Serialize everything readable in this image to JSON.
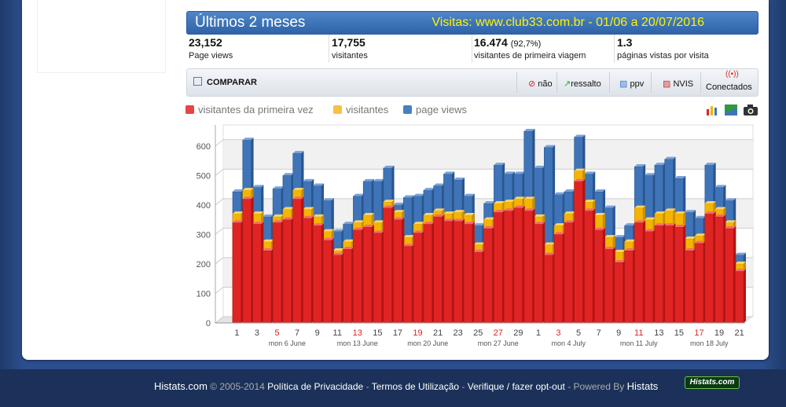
{
  "header": {
    "title": "Últimos 2 meses",
    "visits_text": "Visitas: www.club33.com.br - 01/06 a 20/07/2016"
  },
  "stats": [
    {
      "value": "23,152",
      "extra": "",
      "label": "Page views"
    },
    {
      "value": "17,755",
      "extra": "",
      "label": "visitantes"
    },
    {
      "value": "16.474",
      "extra": "(92,7%)",
      "label": "visitantes de primeira viagem"
    },
    {
      "value": "1.3",
      "extra": "",
      "label": "páginas vistas por visita"
    }
  ],
  "toolbar": {
    "compare": "COMPARAR",
    "buttons": [
      "não",
      "ressalto",
      "ppv",
      "NVIS",
      "Conectados"
    ]
  },
  "colors": {
    "first": "#e02424",
    "visitors": "#f5b400",
    "pageviews": "#3f74b8",
    "header": "#3a73b8",
    "visits_text": "#fff200"
  },
  "icons": [
    "bar-chart-icon",
    "area-chart-icon",
    "camera-icon"
  ],
  "chart_data": {
    "type": "bar",
    "legend": [
      "visitantes da primeira vez",
      "visitantes",
      "page views"
    ],
    "legend_position": "top-left",
    "ylim": [
      0,
      650
    ],
    "yticks": [
      0,
      100,
      200,
      300,
      400,
      500,
      600
    ],
    "grid": true,
    "x": [
      "1",
      "2",
      "3",
      "4",
      "5",
      "6",
      "7",
      "8",
      "9",
      "10",
      "11",
      "12",
      "13",
      "14",
      "15",
      "16",
      "17",
      "18",
      "19",
      "20",
      "21",
      "22",
      "23",
      "24",
      "25",
      "26",
      "27",
      "28",
      "29",
      "30",
      "1",
      "2",
      "3",
      "4",
      "5",
      "6",
      "7",
      "8",
      "9",
      "10",
      "11",
      "12",
      "13",
      "14",
      "15",
      "16",
      "17",
      "18",
      "19",
      "20",
      "21"
    ],
    "xtick_labels": [
      "1",
      "3",
      "5",
      "7",
      "9",
      "11",
      "13",
      "15",
      "17",
      "19",
      "21",
      "23",
      "25",
      "27",
      "29",
      "1",
      "3",
      "5",
      "7",
      "9",
      "11",
      "13",
      "15",
      "17",
      "19",
      "21"
    ],
    "weekend_ticks": [
      "5",
      "13",
      "19",
      "27",
      "3",
      "11",
      "17"
    ],
    "week_labels": [
      {
        "label": "mon 6 June",
        "at": "6"
      },
      {
        "label": "mon 13 June",
        "at": "13"
      },
      {
        "label": "mon 20 June",
        "at": "20"
      },
      {
        "label": "mon 27 June",
        "at": "27"
      },
      {
        "label": "mon 4 July",
        "at": "4"
      },
      {
        "label": "mon 11 July",
        "at": "11"
      },
      {
        "label": "mon 18 July",
        "at": "18"
      }
    ],
    "series": [
      {
        "name": "visitantes da primeira vez",
        "values": [
          340,
          420,
          335,
          245,
          340,
          350,
          420,
          355,
          330,
          280,
          230,
          250,
          315,
          325,
          305,
          390,
          350,
          260,
          305,
          335,
          360,
          345,
          345,
          335,
          240,
          320,
          375,
          380,
          390,
          380,
          335,
          230,
          300,
          340,
          480,
          380,
          315,
          250,
          205,
          245,
          340,
          310,
          330,
          330,
          325,
          245,
          270,
          370,
          360,
          320,
          175
        ]
      },
      {
        "name": "visitantes",
        "values": [
          370,
          450,
          370,
          275,
          360,
          385,
          450,
          385,
          360,
          310,
          245,
          275,
          340,
          365,
          340,
          410,
          375,
          290,
          335,
          365,
          380,
          370,
          375,
          365,
          265,
          350,
          405,
          410,
          420,
          420,
          360,
          265,
          330,
          370,
          515,
          410,
          365,
          290,
          240,
          275,
          390,
          350,
          370,
          380,
          370,
          285,
          295,
          405,
          385,
          340,
          200
        ]
      },
      {
        "name": "page views",
        "values": [
          445,
          620,
          460,
          360,
          455,
          500,
          575,
          480,
          465,
          415,
          310,
          335,
          430,
          480,
          480,
          525,
          400,
          425,
          430,
          450,
          465,
          505,
          485,
          430,
          330,
          405,
          535,
          505,
          505,
          650,
          525,
          595,
          435,
          445,
          630,
          505,
          445,
          390,
          290,
          330,
          530,
          500,
          535,
          555,
          490,
          375,
          355,
          535,
          460,
          415,
          230
        ]
      }
    ]
  },
  "footer": {
    "site": "Histats.com",
    "copy": "© 2005-2014",
    "privacy": "Política de Privacidade",
    "terms": "Termos de Utilização",
    "optout": "Verifique / fazer opt-out",
    "powered": "Powered By",
    "brand": "Histats",
    "badge": "Histats.com"
  }
}
